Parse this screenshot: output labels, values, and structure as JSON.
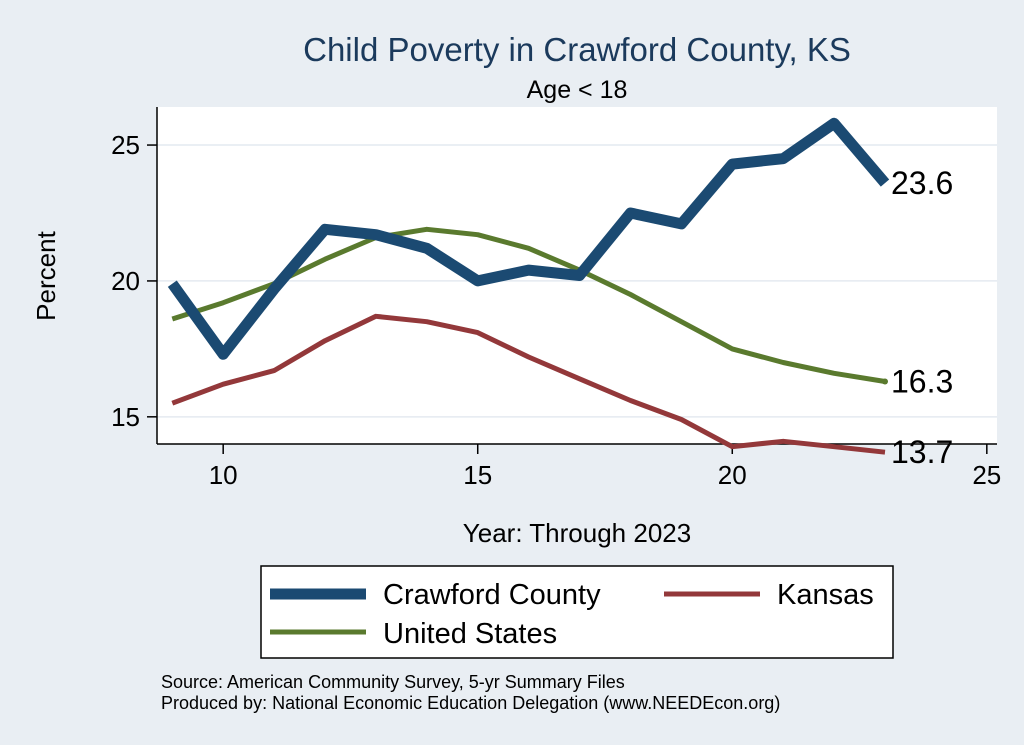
{
  "chart_data": {
    "type": "line",
    "title": "Child Poverty in Crawford County, KS",
    "subtitle": "Age < 18",
    "xlabel": "Year: Through 2023",
    "ylabel": "Percent",
    "xlim": [
      8.7,
      25.2
    ],
    "ylim": [
      14.0,
      26.4
    ],
    "xticks": [
      10,
      15,
      20,
      25
    ],
    "yticks": [
      15,
      20,
      25
    ],
    "grid": true,
    "legend_position": "bottom",
    "x": [
      9,
      10,
      11,
      12,
      13,
      14,
      15,
      16,
      17,
      18,
      19,
      20,
      21,
      22,
      23
    ],
    "series": [
      {
        "name": "Crawford County",
        "color": "#1b4a72",
        "values": [
          19.9,
          17.3,
          19.7,
          21.9,
          21.7,
          21.2,
          20.0,
          20.4,
          20.2,
          22.5,
          22.1,
          24.3,
          24.5,
          25.8,
          23.6
        ],
        "end_label": "23.6"
      },
      {
        "name": "Kansas",
        "color": "#93383a",
        "values": [
          15.5,
          16.2,
          16.7,
          17.8,
          18.7,
          18.5,
          18.1,
          17.2,
          16.4,
          15.6,
          14.9,
          13.9,
          14.1,
          13.9,
          13.7
        ],
        "end_label": "13.7"
      },
      {
        "name": "United States",
        "color": "#5a7a2e",
        "values": [
          18.6,
          19.2,
          19.9,
          20.8,
          21.6,
          21.9,
          21.7,
          21.2,
          20.4,
          19.5,
          18.5,
          17.5,
          17.0,
          16.6,
          16.3
        ],
        "end_label": "16.3"
      }
    ]
  },
  "footer": {
    "source": "Source: American Community Survey, 5-yr Summary Files",
    "produced_by": "Produced by: National Economic Education Delegation (www.NEEDEcon.org)"
  }
}
